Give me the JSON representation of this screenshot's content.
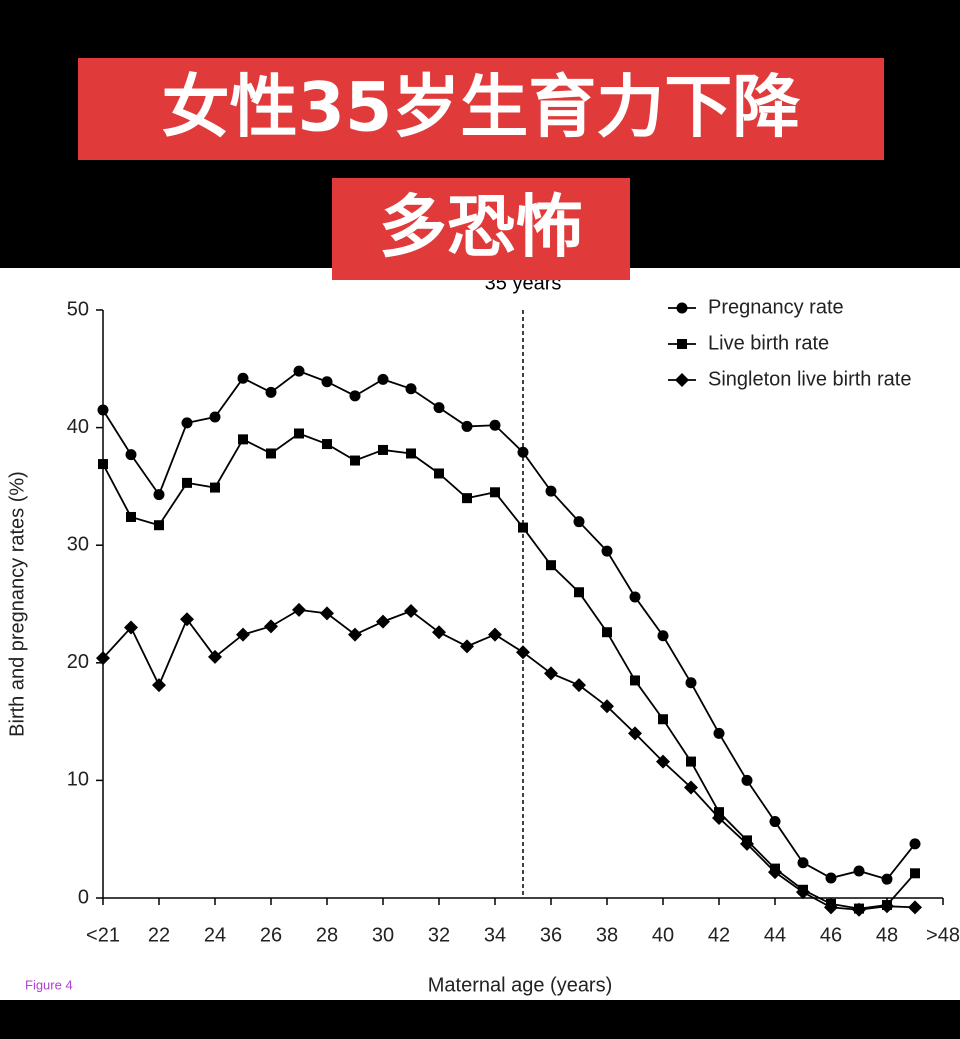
{
  "banner": {
    "line1": "女性35岁生育力下降",
    "line2": "多恐怖"
  },
  "chart_data": {
    "type": "line",
    "xlabel": "Maternal age (years)",
    "ylabel": "Birth and pregnancy rates (%)",
    "x": [
      20,
      21,
      22,
      23,
      24,
      25,
      26,
      27,
      28,
      29,
      30,
      31,
      32,
      33,
      34,
      35,
      36,
      37,
      38,
      39,
      40,
      41,
      42,
      43,
      44,
      45,
      46,
      47,
      48,
      49
    ],
    "series": [
      {
        "name": "Pregnancy rate",
        "color": "#000000",
        "marker": "circle",
        "values": [
          41.5,
          37.7,
          34.3,
          40.4,
          40.9,
          44.2,
          43.0,
          44.8,
          43.9,
          42.7,
          44.1,
          43.3,
          41.7,
          40.1,
          40.2,
          37.9,
          34.6,
          32.0,
          29.5,
          25.6,
          22.3,
          18.3,
          14.0,
          10.0,
          6.5,
          3.0,
          1.7,
          2.3,
          1.6,
          4.6
        ]
      },
      {
        "name": "Live birth rate",
        "color": "#000000",
        "marker": "square",
        "values": [
          36.9,
          32.4,
          31.7,
          35.3,
          34.9,
          39.0,
          37.8,
          39.5,
          38.6,
          37.2,
          38.1,
          37.8,
          36.1,
          34.0,
          34.5,
          31.5,
          28.3,
          26.0,
          22.6,
          18.5,
          15.2,
          11.6,
          7.3,
          4.9,
          2.5,
          0.7,
          -0.5,
          -0.9,
          -0.6,
          2.1
        ]
      },
      {
        "name": "Singleton live birth rate",
        "color": "#000000",
        "marker": "diamond",
        "values": [
          20.4,
          23.0,
          18.1,
          23.7,
          20.5,
          22.4,
          23.1,
          24.5,
          24.2,
          22.4,
          23.5,
          24.4,
          22.6,
          21.4,
          22.4,
          20.9,
          19.1,
          18.1,
          16.3,
          14.0,
          11.6,
          9.4,
          6.8,
          4.6,
          2.2,
          0.5,
          -0.8,
          -1.0,
          -0.7,
          -0.8
        ]
      }
    ],
    "xlim": [
      20,
      50
    ],
    "xticks": [
      {
        "value": 20,
        "label": "<21"
      },
      22,
      24,
      26,
      28,
      30,
      32,
      34,
      36,
      38,
      40,
      42,
      44,
      46,
      48,
      {
        "value": 50,
        "label": ">48"
      }
    ],
    "ylim": [
      0,
      50
    ],
    "yticks": [
      0,
      10,
      20,
      30,
      40,
      50
    ],
    "vline": {
      "x": 35,
      "label": "35 years"
    },
    "legend": "top-right",
    "figure_label": "Figure 4"
  }
}
